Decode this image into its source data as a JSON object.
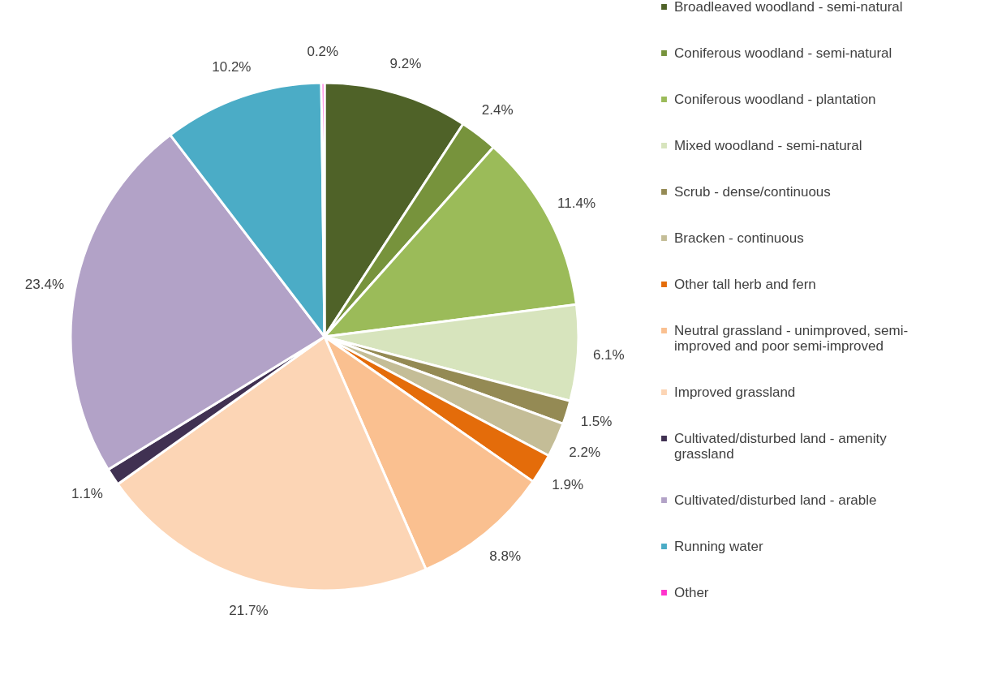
{
  "chart_data": {
    "type": "pie",
    "categories": [
      "Broadleaved woodland - semi-natural",
      "Coniferous woodland - semi-natural",
      "Coniferous woodland - plantation",
      "Mixed woodland - semi-natural",
      "Scrub - dense/continuous",
      "Bracken - continuous",
      "Other tall herb and fern",
      "Neutral grassland - unimproved, semi-improved and poor semi-improved",
      "Improved grassland",
      "Cultivated/disturbed land - amenity grassland",
      "Cultivated/disturbed land - arable",
      "Running water",
      "Other"
    ],
    "values": [
      9.2,
      2.4,
      11.4,
      6.1,
      1.5,
      2.2,
      1.9,
      8.8,
      21.7,
      1.1,
      23.4,
      10.2,
      0.2
    ],
    "value_labels": [
      "9.2%",
      "2.4%",
      "11.4%",
      "6.1%",
      "1.5%",
      "2.2%",
      "1.9%",
      "8.8%",
      "21.7%",
      "1.1%",
      "23.4%",
      "10.2%",
      "0.2%"
    ],
    "colors": [
      "#4f6228",
      "#77933c",
      "#9bbb59",
      "#d7e4bd",
      "#948a54",
      "#c4bd97",
      "#e46c0a",
      "#fac090",
      "#fcd5b5",
      "#403152",
      "#b2a2c7",
      "#4bacc6",
      "#ff33cc"
    ],
    "legend": "right"
  }
}
